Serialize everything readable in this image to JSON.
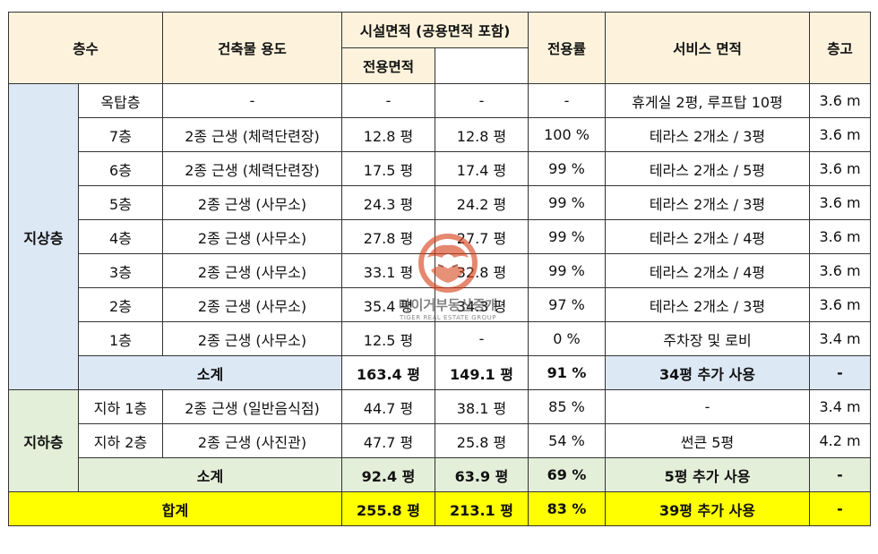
{
  "header": {
    "floor": "층수",
    "use": "건축물 용도",
    "facility_area": "시설면적 (공용면적 포함)",
    "exclusive_area": "전용면적",
    "ratio": "전용률",
    "service_area": "서비스 면적",
    "height": "층고"
  },
  "groups": {
    "above": "지상층",
    "below": "지하층"
  },
  "above_rows": [
    {
      "floor": "옥탑층",
      "use": "-",
      "facility": "-",
      "exclusive": "-",
      "ratio": "-",
      "service": "휴게실 2평, 루프탑 10평",
      "height": "3.6 m"
    },
    {
      "floor": "7층",
      "use": "2종 근생 (체력단련장)",
      "facility": "12.8 평",
      "exclusive": "12.8 평",
      "ratio": "100 %",
      "service": "테라스 2개소 / 3평",
      "height": "3.6 m"
    },
    {
      "floor": "6층",
      "use": "2종 근생 (체력단련장)",
      "facility": "17.5 평",
      "exclusive": "17.4 평",
      "ratio": "99 %",
      "service": "테라스 2개소 / 5평",
      "height": "3.6 m"
    },
    {
      "floor": "5층",
      "use": "2종 근생 (사무소)",
      "facility": "24.3 평",
      "exclusive": "24.2 평",
      "ratio": "99 %",
      "service": "테라스 2개소 / 3평",
      "height": "3.6 m"
    },
    {
      "floor": "4층",
      "use": "2종 근생 (사무소)",
      "facility": "27.8 평",
      "exclusive": "27.7 평",
      "ratio": "99 %",
      "service": "테라스 2개소 / 4평",
      "height": "3.6 m"
    },
    {
      "floor": "3층",
      "use": "2종 근생 (사무소)",
      "facility": "33.1 평",
      "exclusive": "32.8 평",
      "ratio": "99 %",
      "service": "테라스 2개소 / 4평",
      "height": "3.6 m"
    },
    {
      "floor": "2층",
      "use": "2종 근생 (사무소)",
      "facility": "35.4 평",
      "exclusive": "34.3 평",
      "ratio": "97 %",
      "service": "테라스 2개소 / 3평",
      "height": "3.6 m"
    },
    {
      "floor": "1층",
      "use": "2종 근생 (사무소)",
      "facility": "12.5 평",
      "exclusive": "-",
      "ratio": "0 %",
      "service": "주차장 및 로비",
      "height": "3.4 m"
    }
  ],
  "above_subtotal": {
    "label": "소계",
    "facility": "163.4 평",
    "exclusive": "149.1 평",
    "ratio": "91 %",
    "service": "34평 추가 사용",
    "height": "-"
  },
  "below_rows": [
    {
      "floor": "지하 1층",
      "use": "2종 근생 (일반음식점)",
      "facility": "44.7 평",
      "exclusive": "38.1 평",
      "ratio": "85 %",
      "service": "-",
      "height": "3.4 m"
    },
    {
      "floor": "지하 2층",
      "use": "2종 근생 (사진관)",
      "facility": "47.7 평",
      "exclusive": "25.8 평",
      "ratio": "54 %",
      "service": "썬큰 5평",
      "height": "4.2 m"
    }
  ],
  "below_subtotal": {
    "label": "소계",
    "facility": "92.4 평",
    "exclusive": "63.9 평",
    "ratio": "69 %",
    "service": "5평 추가 사용",
    "height": "-"
  },
  "total": {
    "label": "합계",
    "facility": "255.8 평",
    "exclusive": "213.1 평",
    "ratio": "83 %",
    "service": "39평 추가 사용",
    "height": "-"
  },
  "watermark": {
    "name": "타이거부동산중개",
    "sub": "TIGER REAL ESTATE GROUP"
  }
}
